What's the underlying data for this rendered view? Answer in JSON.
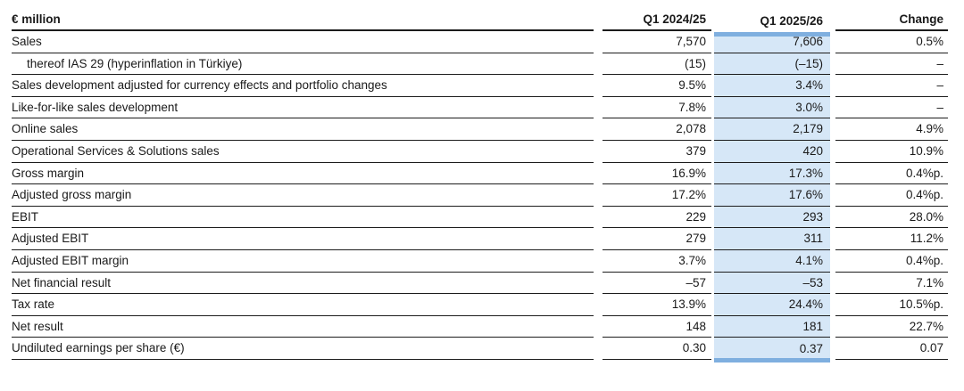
{
  "table": {
    "unit_header": "€ million",
    "columns": [
      "Q1 2024/25",
      "Q1 2025/26",
      "Change"
    ],
    "highlight_column": "Q1 2025/26",
    "colors": {
      "highlight_fill": "#d6e7f7",
      "highlight_bar": "#7fafdf",
      "rule_line": "#1c1c1c",
      "text": "#1a1a1a"
    },
    "rows": [
      {
        "label": "Sales",
        "indent": 0,
        "q1_2024_25": "7,570",
        "q1_2025_26": "7,606",
        "change": "0.5%"
      },
      {
        "label": "thereof IAS 29 (hyperinflation in Türkiye)",
        "indent": 1,
        "q1_2024_25": "(15)",
        "q1_2025_26": "(–15)",
        "change": "–"
      },
      {
        "label": "Sales development adjusted for currency effects and portfolio changes",
        "indent": 0,
        "q1_2024_25": "9.5%",
        "q1_2025_26": "3.4%",
        "change": "–"
      },
      {
        "label": "Like-for-like sales development",
        "indent": 0,
        "q1_2024_25": "7.8%",
        "q1_2025_26": "3.0%",
        "change": "–"
      },
      {
        "label": "Online sales",
        "indent": 0,
        "q1_2024_25": "2,078",
        "q1_2025_26": "2,179",
        "change": "4.9%"
      },
      {
        "label": "Operational Services & Solutions sales",
        "indent": 0,
        "q1_2024_25": "379",
        "q1_2025_26": "420",
        "change": "10.9%"
      },
      {
        "label": "Gross margin",
        "indent": 0,
        "q1_2024_25": "16.9%",
        "q1_2025_26": "17.3%",
        "change": "0.4%p."
      },
      {
        "label": "Adjusted gross margin",
        "indent": 0,
        "q1_2024_25": "17.2%",
        "q1_2025_26": "17.6%",
        "change": "0.4%p."
      },
      {
        "label": "EBIT",
        "indent": 0,
        "q1_2024_25": "229",
        "q1_2025_26": "293",
        "change": "28.0%"
      },
      {
        "label": "Adjusted EBIT",
        "indent": 0,
        "q1_2024_25": "279",
        "q1_2025_26": "311",
        "change": "11.2%"
      },
      {
        "label": "Adjusted EBIT margin",
        "indent": 0,
        "q1_2024_25": "3.7%",
        "q1_2025_26": "4.1%",
        "change": "0.4%p."
      },
      {
        "label": "Net financial result",
        "indent": 0,
        "q1_2024_25": "–57",
        "q1_2025_26": "–53",
        "change": "7.1%"
      },
      {
        "label": "Tax rate",
        "indent": 0,
        "q1_2024_25": "13.9%",
        "q1_2025_26": "24.4%",
        "change": "10.5%p."
      },
      {
        "label": "Net result",
        "indent": 0,
        "q1_2024_25": "148",
        "q1_2025_26": "181",
        "change": "22.7%"
      },
      {
        "label": "Undiluted earnings per share (€)",
        "indent": 0,
        "q1_2024_25": "0.30",
        "q1_2025_26": "0.37",
        "change": "0.07"
      }
    ]
  }
}
